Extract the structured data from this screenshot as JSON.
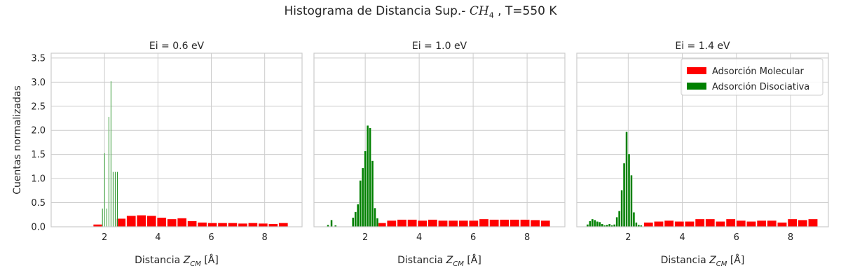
{
  "figure": {
    "title_pre": "Histograma de Distancia Sup.- ",
    "title_math": "CH",
    "title_sub": "4",
    "title_post": " , T=550 K",
    "ylabel": "Cuentas normalizadas",
    "xlabel_pre": "Distancia ",
    "xlabel_var": "Z",
    "xlabel_sub": "CM",
    "xlabel_unit": " [Å]"
  },
  "colors": {
    "molecular": "#ff0000",
    "disociativa": "#008000",
    "grid": "#cccccc",
    "frame": "#cccccc"
  },
  "legend": {
    "placement": "top-right",
    "entries": [
      "Adsorción Molecular",
      "Adsorción Disociativa"
    ]
  },
  "chart_data": [
    {
      "type": "bar",
      "title": "Ei = 0.6 eV",
      "xlim": [
        0,
        9.4
      ],
      "ylim": [
        0,
        3.6
      ],
      "xticks": [
        2,
        4,
        6,
        8
      ],
      "yticks": [
        0.0,
        0.5,
        1.0,
        1.5,
        2.0,
        2.5,
        3.0,
        3.5
      ],
      "grid": true,
      "series": [
        {
          "name": "Adsorción Molecular",
          "width": 0.34,
          "x": [
            1.75,
            2.62,
            3.0,
            3.38,
            3.76,
            4.14,
            4.52,
            4.9,
            5.28,
            5.66,
            6.04,
            6.42,
            6.8,
            7.18,
            7.56,
            7.94,
            8.32,
            8.7
          ],
          "y": [
            0.05,
            0.17,
            0.23,
            0.24,
            0.23,
            0.19,
            0.16,
            0.18,
            0.12,
            0.09,
            0.08,
            0.08,
            0.08,
            0.07,
            0.08,
            0.07,
            0.06,
            0.08
          ]
        },
        {
          "name": "Adsorción Disociativa",
          "width": 0.03,
          "x": [
            1.92,
            2.0,
            2.08,
            2.16,
            2.24,
            2.32,
            2.4,
            2.48
          ],
          "y": [
            0.38,
            1.53,
            0.38,
            2.28,
            3.02,
            1.14,
            1.14,
            1.14
          ]
        }
      ]
    },
    {
      "type": "bar",
      "title": "Ei = 1.0 eV",
      "xlim": [
        0.1,
        9.4
      ],
      "ylim": [
        0,
        3.6
      ],
      "xticks": [
        2,
        4,
        6,
        8
      ],
      "yticks": [
        0.0,
        0.5,
        1.0,
        1.5,
        2.0,
        2.5,
        3.0,
        3.5
      ],
      "grid": true,
      "series": [
        {
          "name": "Adsorción Molecular",
          "width": 0.34,
          "x": [
            2.6,
            2.98,
            3.36,
            3.74,
            4.12,
            4.5,
            4.88,
            5.26,
            5.64,
            6.02,
            6.4,
            6.78,
            7.16,
            7.54,
            7.92,
            8.3,
            8.68
          ],
          "y": [
            0.08,
            0.13,
            0.15,
            0.15,
            0.13,
            0.15,
            0.13,
            0.13,
            0.13,
            0.13,
            0.16,
            0.15,
            0.15,
            0.15,
            0.15,
            0.14,
            0.13
          ]
        },
        {
          "name": "Adsorción Disociativa",
          "width": 0.075,
          "x": [
            0.62,
            0.75,
            0.9,
            1.55,
            1.64,
            1.73,
            1.82,
            1.91,
            2.0,
            2.09,
            2.18,
            2.27,
            2.36,
            2.45
          ],
          "y": [
            0.04,
            0.14,
            0.03,
            0.19,
            0.31,
            0.47,
            0.96,
            1.22,
            1.57,
            2.1,
            2.05,
            1.37,
            0.39,
            0.18
          ]
        }
      ]
    },
    {
      "type": "bar",
      "title": "Ei = 1.4 eV",
      "xlim": [
        0.1,
        9.4
      ],
      "ylim": [
        0,
        3.6
      ],
      "xticks": [
        2,
        4,
        6,
        8
      ],
      "yticks": [
        0.0,
        0.5,
        1.0,
        1.5,
        2.0,
        2.5,
        3.0,
        3.5
      ],
      "grid": true,
      "series": [
        {
          "name": "Adsorción Molecular",
          "width": 0.34,
          "x": [
            2.75,
            3.13,
            3.51,
            3.89,
            4.27,
            4.65,
            5.03,
            5.41,
            5.79,
            6.17,
            6.55,
            6.93,
            7.31,
            7.69,
            8.07,
            8.45,
            8.83
          ],
          "y": [
            0.09,
            0.11,
            0.13,
            0.11,
            0.11,
            0.16,
            0.16,
            0.11,
            0.16,
            0.13,
            0.11,
            0.13,
            0.13,
            0.09,
            0.16,
            0.14,
            0.16
          ]
        },
        {
          "name": "Adsorción Disociativa",
          "width": 0.075,
          "x": [
            0.5,
            0.59,
            0.68,
            0.77,
            0.86,
            0.95,
            1.04,
            1.13,
            1.22,
            1.31,
            1.4,
            1.49,
            1.58,
            1.67,
            1.76,
            1.85,
            1.94,
            2.03,
            2.12,
            2.21,
            2.3,
            2.39,
            2.48
          ],
          "y": [
            0.05,
            0.12,
            0.16,
            0.14,
            0.11,
            0.1,
            0.06,
            0.03,
            0.04,
            0.06,
            0.03,
            0.05,
            0.2,
            0.33,
            0.76,
            1.32,
            1.97,
            1.51,
            1.07,
            0.3,
            0.09,
            0.04,
            0.03
          ]
        }
      ]
    }
  ]
}
